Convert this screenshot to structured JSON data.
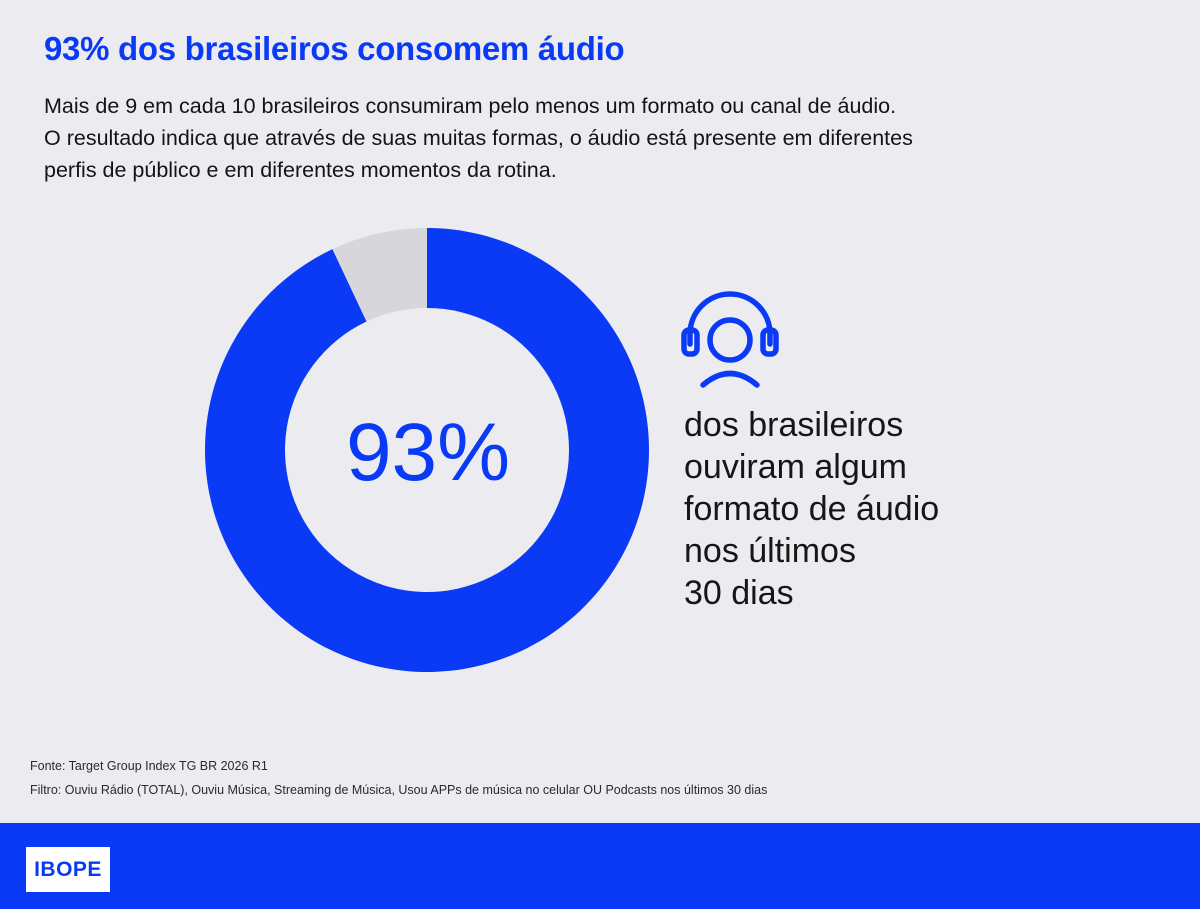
{
  "header": {
    "title": "93% dos brasileiros consomem áudio",
    "subtitle_lines": [
      "Mais de 9 em cada 10 brasileiros consumiram pelo menos um formato ou canal de áudio.",
      "O resultado indica que através de suas muitas formas, o áudio está presente em diferentes",
      "perfis de público e em diferentes momentos da rotina."
    ]
  },
  "chart_data": {
    "type": "pie",
    "style": "donut",
    "center_label": "93%",
    "slices": [
      {
        "value": 93,
        "color": "#0a3af5"
      },
      {
        "value": 7,
        "color": "#d7d7db"
      }
    ],
    "start_angle_degrees": 0,
    "direction": "clockwise"
  },
  "stat": {
    "icon": "headphones-person-icon",
    "caption_lines": [
      "dos brasileiros",
      "ouviram algum",
      "formato de áudio",
      "nos últimos",
      "30 dias"
    ]
  },
  "notes": {
    "source": "Fonte: Target Group Index TG BR 2026 R1",
    "filter": "Filtro: Ouviu Rádio (TOTAL), Ouviu Música, Streaming de Música, Usou APPs de música no celular OU Podcasts nos últimos 30 dias"
  },
  "footer": {
    "logo": "IBOPE"
  },
  "colors": {
    "accent": "#0a3af5",
    "background": "#ececf0",
    "remainder": "#d7d7db"
  }
}
